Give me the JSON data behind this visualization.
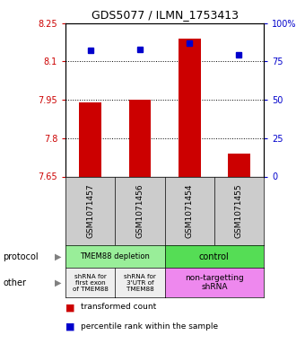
{
  "title": "GDS5077 / ILMN_1753413",
  "samples": [
    "GSM1071457",
    "GSM1071456",
    "GSM1071454",
    "GSM1071455"
  ],
  "bar_values": [
    7.94,
    7.95,
    8.19,
    7.74
  ],
  "bar_bottom": 7.65,
  "percentile_values": [
    82,
    83,
    87,
    79
  ],
  "ylim_left": [
    7.65,
    8.25
  ],
  "ylim_right": [
    0,
    100
  ],
  "yticks_left": [
    7.65,
    7.8,
    7.95,
    8.1,
    8.25
  ],
  "ytick_labels_left": [
    "7.65",
    "7.8",
    "7.95",
    "8.1",
    "8.25"
  ],
  "yticks_right": [
    0,
    25,
    50,
    75,
    100
  ],
  "ytick_labels_right": [
    "0",
    "25",
    "50",
    "75",
    "100%"
  ],
  "bar_color": "#cc0000",
  "percentile_color": "#0000cc",
  "grid_yticks": [
    7.8,
    7.95,
    8.1
  ],
  "sample_header_color": "#cccccc",
  "protocol_depletion_color": "#99ee99",
  "protocol_control_color": "#55dd55",
  "other_gray_color": "#eeeeee",
  "other_pink_color": "#ee88ee",
  "protocol_label": "protocol",
  "other_label": "other",
  "legend_bar_label": "transformed count",
  "legend_pct_label": "percentile rank within the sample"
}
